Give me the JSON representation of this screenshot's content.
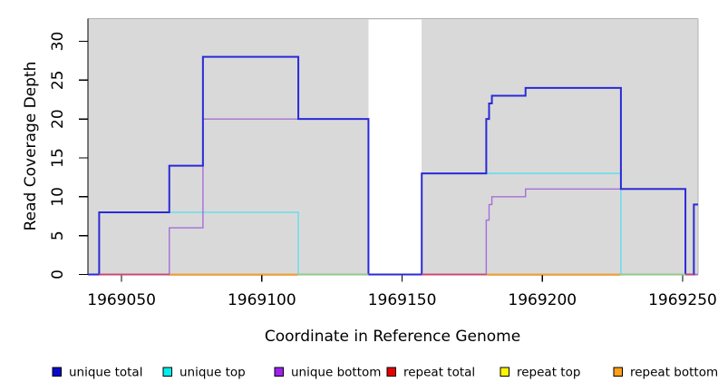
{
  "chart_data": {
    "type": "line",
    "subtype": "step-coverage",
    "title": "",
    "xlabel": "Coordinate in Reference Genome",
    "ylabel": "Read Coverage Depth",
    "xlim": [
      1969038,
      1969255.5
    ],
    "ylim": [
      0,
      33
    ],
    "x_ticks": [
      1969050,
      1969100,
      1969150,
      1969200,
      1969250
    ],
    "y_ticks": [
      0,
      5,
      10,
      15,
      20,
      25,
      30
    ],
    "grid": false,
    "plot_background": "#d9d9d9",
    "no_data_gap": {
      "from": 1969138,
      "to": 1969157
    },
    "series": [
      {
        "name": "repeat top",
        "color": "#f5ef00",
        "width": 1.2,
        "steps": [
          [
            1969038,
            0
          ]
        ]
      },
      {
        "name": "repeat total",
        "color": "#e00000",
        "width": 1.2,
        "steps": [
          [
            1969038,
            0
          ]
        ]
      },
      {
        "name": "repeat bottom",
        "color": "#ff9e1b",
        "width": 1.5,
        "steps": [
          [
            1969038,
            0
          ]
        ]
      },
      {
        "name": "unique top",
        "color": "#5fdfea",
        "width": 1.4,
        "steps": [
          [
            1969038,
            0
          ],
          [
            1969042,
            8
          ],
          [
            1969113,
            0
          ],
          [
            1969157,
            13
          ],
          [
            1969228,
            0
          ]
        ]
      },
      {
        "name": "unique bottom",
        "color": "#a56fd8",
        "width": 1.4,
        "steps": [
          [
            1969038,
            0
          ],
          [
            1969067,
            6
          ],
          [
            1969079,
            20
          ],
          [
            1969138,
            0
          ],
          [
            1969180,
            7
          ],
          [
            1969181,
            9
          ],
          [
            1969182,
            10
          ],
          [
            1969194,
            11
          ],
          [
            1969251,
            0
          ]
        ]
      },
      {
        "name": "unique total",
        "color": "#2a2ad7",
        "width": 2.0,
        "steps": [
          [
            1969038,
            0
          ],
          [
            1969042,
            8
          ],
          [
            1969067,
            14
          ],
          [
            1969079,
            28
          ],
          [
            1969113,
            20
          ],
          [
            1969138,
            0
          ],
          [
            1969157,
            13
          ],
          [
            1969180,
            20
          ],
          [
            1969181,
            22
          ],
          [
            1969182,
            23
          ],
          [
            1969194,
            24
          ],
          [
            1969228,
            11
          ],
          [
            1969251,
            0
          ],
          [
            1969254,
            9
          ]
        ]
      }
    ],
    "baseline_overlap_segments": [
      {
        "from": 1969042,
        "to": 1969067,
        "color": "#c9476f"
      },
      {
        "from": 1969113,
        "to": 1969138,
        "color": "#8fcb8f"
      },
      {
        "from": 1969157,
        "to": 1969180,
        "color": "#c9476f"
      },
      {
        "from": 1969228,
        "to": 1969251,
        "color": "#8fcb8f"
      },
      {
        "from": 1969251,
        "to": 1969254,
        "color": "#c9476f"
      }
    ],
    "legend": {
      "position": "bottom",
      "items": [
        {
          "label": "unique total",
          "marker_color": "#0a0acc"
        },
        {
          "label": "unique top",
          "marker_color": "#00eeee"
        },
        {
          "label": "unique bottom",
          "marker_color": "#a020f0"
        },
        {
          "label": "repeat total",
          "marker_color": "#e60000"
        },
        {
          "label": "repeat top",
          "marker_color": "#fff500"
        },
        {
          "label": "repeat bottom",
          "marker_color": "#ffa019"
        }
      ]
    }
  },
  "colors": {
    "page_bg": "#ffffff",
    "plot_bg": "#d9d9d9",
    "box_border": "#b2b2b2",
    "axis": "#000000"
  }
}
